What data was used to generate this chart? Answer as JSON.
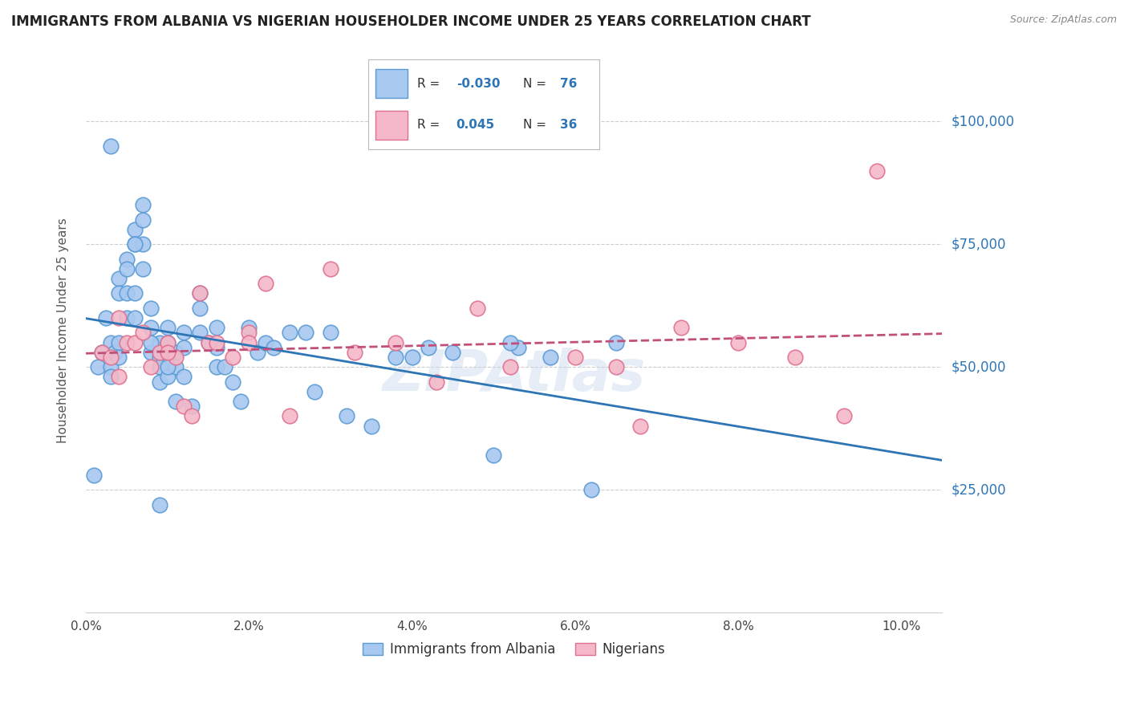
{
  "title": "IMMIGRANTS FROM ALBANIA VS NIGERIAN HOUSEHOLDER INCOME UNDER 25 YEARS CORRELATION CHART",
  "source": "Source: ZipAtlas.com",
  "ylabel": "Householder Income Under 25 years",
  "legend_albania_R": "-0.030",
  "legend_albania_N": "76",
  "legend_nigeria_R": "0.045",
  "legend_nigeria_N": "36",
  "legend_label_albania": "Immigrants from Albania",
  "legend_label_nigeria": "Nigerians",
  "xlim": [
    0.0,
    0.105
  ],
  "ylim": [
    0,
    115000
  ],
  "albania_color": "#a8c8f0",
  "albania_edge_color": "#5b9bd5",
  "albania_line_color": "#2e75b6",
  "nigeria_color": "#f4b8c8",
  "nigeria_edge_color": "#e07090",
  "nigeria_line_color": "#c0507a",
  "grid_color": "#cccccc",
  "albania_x": [
    0.001,
    0.0015,
    0.002,
    0.0025,
    0.003,
    0.003,
    0.003,
    0.0035,
    0.004,
    0.004,
    0.004,
    0.005,
    0.005,
    0.005,
    0.005,
    0.006,
    0.006,
    0.006,
    0.007,
    0.007,
    0.007,
    0.007,
    0.008,
    0.008,
    0.008,
    0.009,
    0.009,
    0.009,
    0.009,
    0.01,
    0.01,
    0.01,
    0.011,
    0.011,
    0.011,
    0.012,
    0.012,
    0.013,
    0.014,
    0.014,
    0.015,
    0.016,
    0.016,
    0.017,
    0.018,
    0.019,
    0.02,
    0.021,
    0.022,
    0.023,
    0.025,
    0.027,
    0.028,
    0.03,
    0.032,
    0.035,
    0.038,
    0.04,
    0.042,
    0.045,
    0.05,
    0.053,
    0.057,
    0.062,
    0.065,
    0.003,
    0.006,
    0.009,
    0.052,
    0.004,
    0.006,
    0.008,
    0.01,
    0.012,
    0.014,
    0.016
  ],
  "albania_y": [
    28000,
    50000,
    53000,
    60000,
    55000,
    50000,
    48000,
    53000,
    68000,
    65000,
    55000,
    72000,
    70000,
    65000,
    60000,
    78000,
    75000,
    65000,
    83000,
    80000,
    75000,
    70000,
    62000,
    58000,
    53000,
    55000,
    52000,
    50000,
    47000,
    58000,
    55000,
    48000,
    53000,
    50000,
    43000,
    57000,
    54000,
    42000,
    62000,
    57000,
    55000,
    54000,
    50000,
    50000,
    47000,
    43000,
    58000,
    53000,
    55000,
    54000,
    57000,
    57000,
    45000,
    57000,
    40000,
    38000,
    52000,
    52000,
    54000,
    53000,
    32000,
    54000,
    52000,
    25000,
    55000,
    95000,
    75000,
    22000,
    55000,
    52000,
    60000,
    55000,
    50000,
    48000,
    65000,
    58000
  ],
  "nigeria_x": [
    0.002,
    0.003,
    0.004,
    0.005,
    0.006,
    0.007,
    0.008,
    0.009,
    0.01,
    0.011,
    0.012,
    0.013,
    0.014,
    0.015,
    0.016,
    0.018,
    0.02,
    0.022,
    0.025,
    0.03,
    0.033,
    0.038,
    0.043,
    0.048,
    0.052,
    0.06,
    0.065,
    0.068,
    0.073,
    0.08,
    0.087,
    0.093,
    0.097,
    0.004,
    0.01,
    0.02
  ],
  "nigeria_y": [
    53000,
    52000,
    60000,
    55000,
    55000,
    57000,
    50000,
    53000,
    55000,
    52000,
    42000,
    40000,
    65000,
    55000,
    55000,
    52000,
    57000,
    67000,
    40000,
    70000,
    53000,
    55000,
    47000,
    62000,
    50000,
    52000,
    50000,
    38000,
    58000,
    55000,
    52000,
    40000,
    90000,
    48000,
    53000,
    55000
  ]
}
